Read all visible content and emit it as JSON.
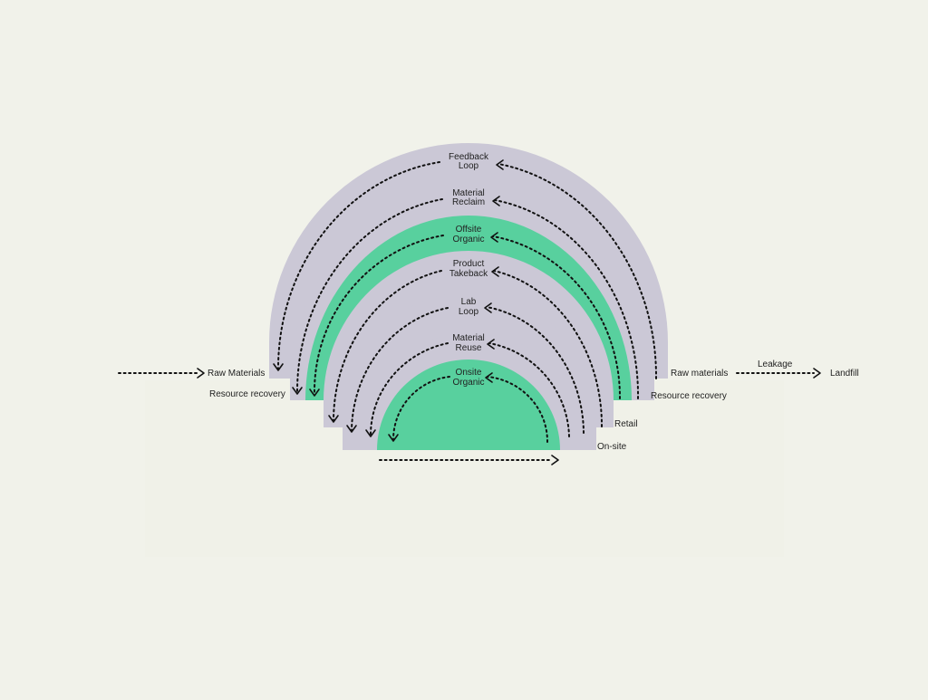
{
  "colors": {
    "background": "#f1f2ea",
    "panel": "#f0f1e8",
    "lavender": "#cbc8d6",
    "green": "#58d09e",
    "ink": "#111111"
  },
  "loops": [
    {
      "line1": "Feedback",
      "line2": "Loop",
      "fill": "#cbc8d6"
    },
    {
      "line1": "Material",
      "line2": "Reclaim",
      "fill": "#cbc8d6"
    },
    {
      "line1": "Offsite",
      "line2": "Organic",
      "fill": "#58d09e"
    },
    {
      "line1": "Product",
      "line2": "Takeback",
      "fill": "#cbc8d6"
    },
    {
      "line1": "Lab",
      "line2": "Loop",
      "fill": "#cbc8d6"
    },
    {
      "line1": "Material",
      "line2": "Reuse",
      "fill": "#cbc8d6"
    },
    {
      "line1": "Onsite",
      "line2": "Organic",
      "fill": "#58d09e"
    }
  ],
  "labels": {
    "raw_materials_left": "Raw Materials",
    "resource_recovery_left": "Resource recovery",
    "raw_materials_right": "Raw materials",
    "leakage": "Leakage",
    "landfill": "Landfill",
    "resource_recovery_right": "Resource recovery",
    "retail": "Retail",
    "on_site": "On-site"
  }
}
